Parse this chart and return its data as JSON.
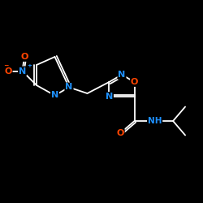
{
  "background_color": "#000000",
  "bond_color": "#ffffff",
  "N_color": "#1E90FF",
  "O_color": "#FF4500",
  "figsize": [
    2.5,
    2.5
  ],
  "dpi": 100,
  "xlim": [
    0.0,
    1.0
  ],
  "ylim": [
    0.0,
    1.0
  ]
}
